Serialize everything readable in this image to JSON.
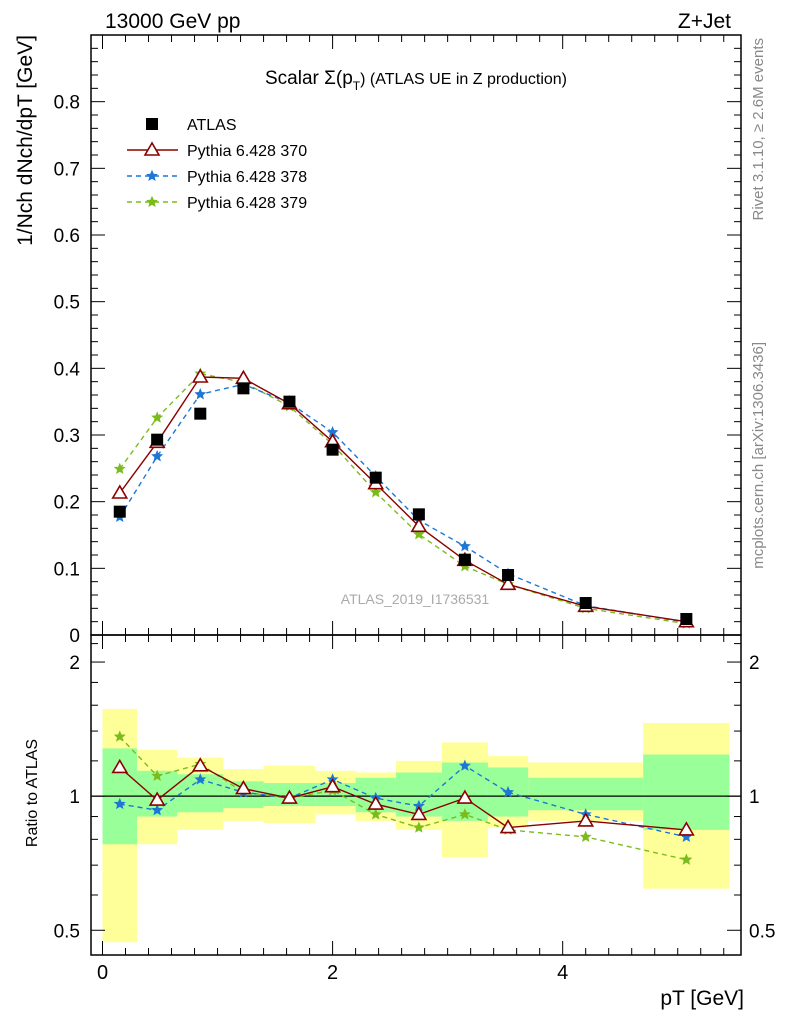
{
  "header": {
    "left": "13000 GeV pp",
    "right": "Z+Jet"
  },
  "side_labels": {
    "rivet": "Rivet 3.1.10, ≥ 2.6M events",
    "mcplots": "mcplots.cern.ch [arXiv:1306.3436]"
  },
  "colors": {
    "atlas": "#000000",
    "p370": "#8b0000",
    "p378": "#1f77d4",
    "p379": "#7cbb1e",
    "band_inner": "#99ff99",
    "band_outer": "#ffff99"
  },
  "chart_data": [
    {
      "type": "line",
      "title": "Scalar Σ(pT) (ATLAS UE in Z production)",
      "title_main": "Scalar Σ(p",
      "title_sub": "T",
      "title_tail": ") (ATLAS UE in Z production)",
      "ylabel": "1/Nch dNch/dpT [GeV]",
      "watermark": "ATLAS_2019_I1736531",
      "xlim": [
        -0.1,
        5.55
      ],
      "ylim": [
        0,
        0.9
      ],
      "yticks": [
        "0",
        "0.1",
        "0.2",
        "0.3",
        "0.4",
        "0.5",
        "0.6",
        "0.7",
        "0.8"
      ],
      "grid": false,
      "legend_position": "top-left",
      "x": [
        0.15,
        0.475,
        0.85,
        1.225,
        1.625,
        2.0,
        2.375,
        2.75,
        3.15,
        3.525,
        4.2,
        5.075
      ],
      "series": [
        {
          "name": "ATLAS",
          "values": [
            0.185,
            0.293,
            0.332,
            0.37,
            0.35,
            0.278,
            0.236,
            0.181,
            0.113,
            0.09,
            0.048,
            0.024
          ]
        },
        {
          "name": "Pythia 6.428 370",
          "values": [
            0.213,
            0.289,
            0.387,
            0.385,
            0.347,
            0.29,
            0.227,
            0.163,
            0.112,
            0.076,
            0.043,
            0.02
          ]
        },
        {
          "name": "Pythia 6.428 378",
          "values": [
            0.177,
            0.268,
            0.361,
            0.376,
            0.348,
            0.304,
            0.238,
            0.172,
            0.133,
            0.092,
            0.044,
            0.019
          ]
        },
        {
          "name": "Pythia 6.428 379",
          "values": [
            0.249,
            0.326,
            0.392,
            0.379,
            0.343,
            0.286,
            0.214,
            0.151,
            0.103,
            0.076,
            0.04,
            0.017
          ]
        }
      ]
    },
    {
      "type": "line",
      "ylabel": "Ratio to ATLAS",
      "xlabel": "pT [GeV]",
      "xlim": [
        -0.1,
        5.55
      ],
      "ylim": [
        0.44,
        2.3
      ],
      "yscale": "log",
      "xticks": [
        "0",
        "2",
        "4"
      ],
      "yticks": [
        "0.5",
        "1",
        "2"
      ],
      "x": [
        0.15,
        0.475,
        0.85,
        1.225,
        1.625,
        2.0,
        2.375,
        2.75,
        3.15,
        3.525,
        4.2,
        5.075
      ],
      "bin_edges": [
        0.0,
        0.3,
        0.65,
        1.05,
        1.4,
        1.85,
        2.2,
        2.55,
        2.95,
        3.35,
        3.7,
        4.7,
        5.45
      ],
      "band_inner_low": [
        0.78,
        0.9,
        0.92,
        0.94,
        0.95,
        0.95,
        0.92,
        0.9,
        0.88,
        0.9,
        0.93,
        0.84
      ],
      "band_inner_high": [
        1.28,
        1.14,
        1.12,
        1.08,
        1.07,
        1.07,
        1.1,
        1.13,
        1.19,
        1.16,
        1.1,
        1.24
      ],
      "band_outer_low": [
        0.47,
        0.78,
        0.84,
        0.88,
        0.87,
        0.91,
        0.88,
        0.84,
        0.73,
        0.85,
        0.88,
        0.62
      ],
      "band_outer_high": [
        1.57,
        1.27,
        1.22,
        1.15,
        1.17,
        1.14,
        1.13,
        1.2,
        1.32,
        1.23,
        1.19,
        1.46
      ],
      "series": [
        {
          "name": "Pythia 6.428 370",
          "values": [
            1.16,
            0.98,
            1.17,
            1.04,
            0.99,
            1.05,
            0.96,
            0.91,
            0.99,
            0.85,
            0.88,
            0.84
          ]
        },
        {
          "name": "Pythia 6.428 378",
          "values": [
            0.96,
            0.93,
            1.09,
            1.02,
            0.99,
            1.09,
            0.99,
            0.95,
            1.17,
            1.02,
            0.91,
            0.81
          ]
        },
        {
          "name": "Pythia 6.428 379",
          "values": [
            1.36,
            1.11,
            1.18,
            1.02,
            0.99,
            1.03,
            0.91,
            0.85,
            0.91,
            0.84,
            0.81,
            0.72
          ]
        }
      ]
    }
  ]
}
